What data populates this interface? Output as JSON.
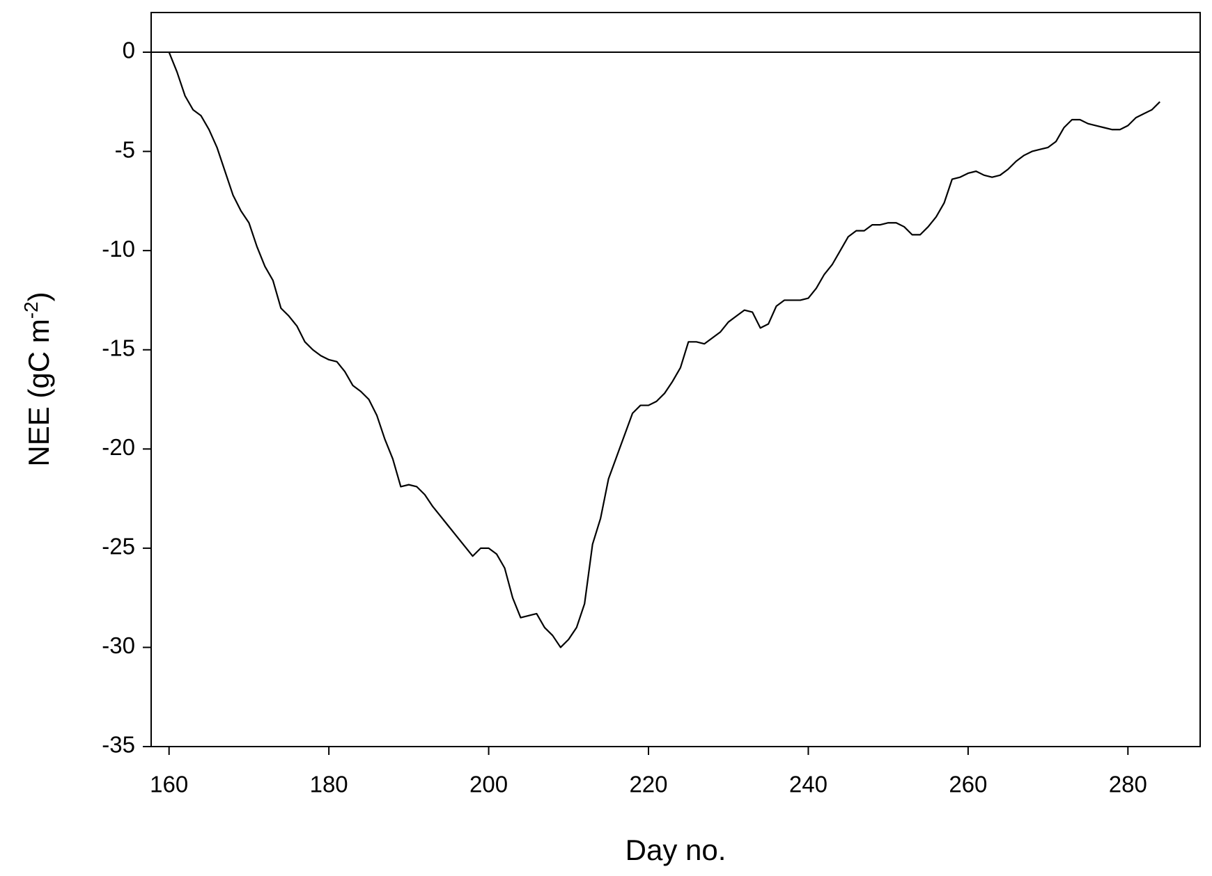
{
  "chart_data": {
    "type": "line",
    "xlabel": "Day no.",
    "ylabel": {
      "main": "NEE (gC m",
      "sup": "-2",
      "end": ")"
    },
    "x": [
      160,
      161,
      162,
      163,
      164,
      165,
      166,
      167,
      168,
      169,
      170,
      171,
      172,
      173,
      174,
      175,
      176,
      177,
      178,
      179,
      180,
      181,
      182,
      183,
      184,
      185,
      186,
      187,
      188,
      189,
      190,
      191,
      192,
      193,
      194,
      195,
      196,
      197,
      198,
      199,
      200,
      201,
      202,
      203,
      204,
      205,
      206,
      207,
      208,
      209,
      210,
      211,
      212,
      213,
      214,
      215,
      216,
      217,
      218,
      219,
      220,
      221,
      222,
      223,
      224,
      225,
      226,
      227,
      228,
      229,
      230,
      231,
      232,
      233,
      234,
      235,
      236,
      237,
      238,
      239,
      240,
      241,
      242,
      243,
      244,
      245,
      246,
      247,
      248,
      249,
      250,
      251,
      252,
      253,
      254,
      255,
      256,
      257,
      258,
      259,
      260,
      261,
      262,
      263,
      264,
      265,
      266,
      267,
      268,
      269,
      270,
      271,
      272,
      273,
      274,
      275,
      276,
      277,
      278,
      279,
      280,
      281,
      282,
      283,
      284
    ],
    "series": [
      {
        "name": "NEE",
        "color": "#000000",
        "values": [
          0,
          -1,
          -2.2,
          -2.9,
          -3.2,
          -3.9,
          -4.8,
          -6,
          -7.2,
          -8,
          -8.6,
          -9.8,
          -10.8,
          -11.5,
          -12.9,
          -13.3,
          -13.8,
          -14.6,
          -15,
          -15.3,
          -15.5,
          -15.6,
          -16.1,
          -16.8,
          -17.1,
          -17.5,
          -18.3,
          -19.5,
          -20.5,
          -21.9,
          -21.8,
          -21.9,
          -22.3,
          -22.9,
          -23.4,
          -23.9,
          -24.4,
          -24.9,
          -25.4,
          -25,
          -25,
          -25.3,
          -26,
          -27.5,
          -28.5,
          -28.4,
          -28.3,
          -29,
          -29.4,
          -30,
          -29.6,
          -29,
          -27.8,
          -24.8,
          -23.5,
          -21.5,
          -20.4,
          -19.3,
          -18.2,
          -17.8,
          -17.8,
          -17.6,
          -17.2,
          -16.6,
          -15.9,
          -14.6,
          -14.6,
          -14.7,
          -14.4,
          -14.1,
          -13.6,
          -13.3,
          -13,
          -13.1,
          -13.9,
          -13.7,
          -12.8,
          -12.5,
          -12.5,
          -12.5,
          -12.4,
          -11.9,
          -11.2,
          -10.7,
          -10,
          -9.3,
          -9,
          -9,
          -8.7,
          -8.7,
          -8.6,
          -8.6,
          -8.8,
          -9.2,
          -9.2,
          -8.8,
          -8.3,
          -7.6,
          -6.4,
          -6.3,
          -6.1,
          -6,
          -6.2,
          -6.3,
          -6.2,
          -5.9,
          -5.5,
          -5.2,
          -5,
          -4.9,
          -4.8,
          -4.5,
          -3.8,
          -3.4,
          -3.4,
          -3.6,
          -3.7,
          -3.8,
          -3.9,
          -3.9,
          -3.7,
          -3.3,
          -3.1,
          -2.9,
          -2.5
        ]
      }
    ],
    "hline": 0,
    "xlim": [
      157.76,
      289.04
    ],
    "xticks": [
      160,
      180,
      200,
      220,
      240,
      260,
      280
    ],
    "ylim": [
      -35,
      2
    ],
    "yticks": [
      0,
      -5,
      -10,
      -15,
      -20,
      -25,
      -30,
      -35
    ],
    "grid": false
  }
}
